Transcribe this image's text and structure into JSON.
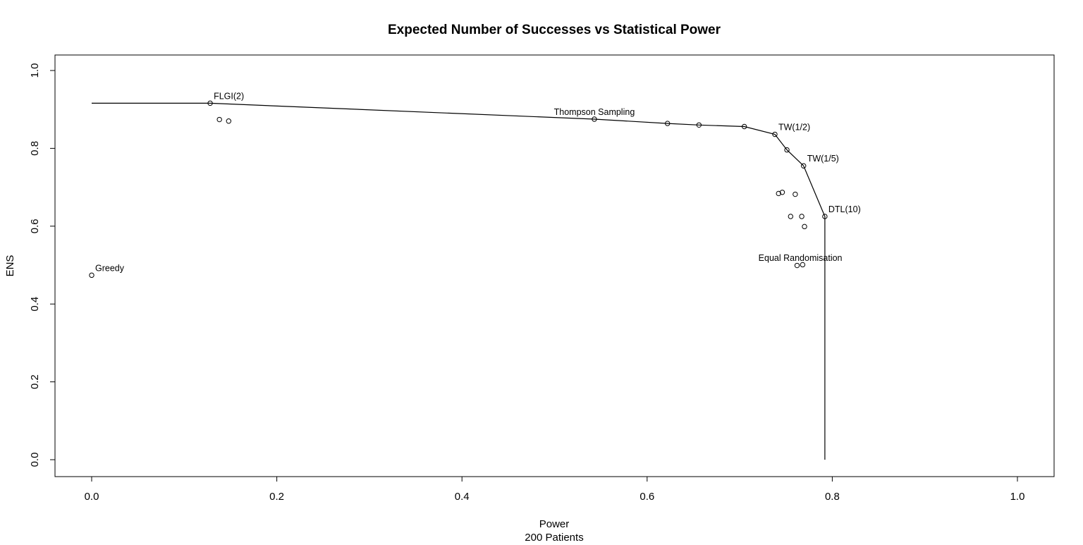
{
  "chart_data": {
    "type": "scatter",
    "title": "Expected Number of Successes vs Statistical Power",
    "xlabel": "Power",
    "xlabel_sub": "200 Patients",
    "ylabel": "ENS",
    "xlim": [
      0.0,
      1.0
    ],
    "ylim": [
      0.0,
      1.0
    ],
    "xticks": [
      "0.0",
      "0.2",
      "0.4",
      "0.6",
      "0.8",
      "1.0"
    ],
    "yticks": [
      "0.0",
      "0.2",
      "0.4",
      "0.6",
      "0.8",
      "1.0"
    ],
    "grid": false,
    "points": [
      {
        "x": 0.0,
        "y": 0.474
      },
      {
        "x": 0.128,
        "y": 0.916
      },
      {
        "x": 0.138,
        "y": 0.874
      },
      {
        "x": 0.148,
        "y": 0.87
      },
      {
        "x": 0.543,
        "y": 0.875
      },
      {
        "x": 0.622,
        "y": 0.864
      },
      {
        "x": 0.656,
        "y": 0.86
      },
      {
        "x": 0.705,
        "y": 0.856
      },
      {
        "x": 0.738,
        "y": 0.836
      },
      {
        "x": 0.751,
        "y": 0.796
      },
      {
        "x": 0.769,
        "y": 0.755
      },
      {
        "x": 0.792,
        "y": 0.625
      },
      {
        "x": 0.742,
        "y": 0.684
      },
      {
        "x": 0.746,
        "y": 0.687
      },
      {
        "x": 0.76,
        "y": 0.682
      },
      {
        "x": 0.755,
        "y": 0.625
      },
      {
        "x": 0.767,
        "y": 0.625
      },
      {
        "x": 0.77,
        "y": 0.599
      },
      {
        "x": 0.762,
        "y": 0.499
      },
      {
        "x": 0.768,
        "y": 0.501
      }
    ],
    "frontier": {
      "x": [
        0.0,
        0.128,
        0.543,
        0.622,
        0.656,
        0.705,
        0.738,
        0.751,
        0.769,
        0.792,
        0.792
      ],
      "y": [
        0.916,
        0.916,
        0.875,
        0.864,
        0.86,
        0.856,
        0.836,
        0.796,
        0.755,
        0.625,
        0.0
      ]
    },
    "annotations": [
      {
        "text": "Greedy",
        "x": 0.0,
        "y": 0.474,
        "anchor": "start"
      },
      {
        "text": "FLGI(2)",
        "x": 0.128,
        "y": 0.916,
        "anchor": "start"
      },
      {
        "text": "Thompson Sampling",
        "x": 0.543,
        "y": 0.875,
        "anchor": "middle"
      },
      {
        "text": "TW(1/2)",
        "x": 0.738,
        "y": 0.836,
        "anchor": "start"
      },
      {
        "text": "TW(1/5)",
        "x": 0.769,
        "y": 0.755,
        "anchor": "start"
      },
      {
        "text": "DTL(10)",
        "x": 0.792,
        "y": 0.625,
        "anchor": "start"
      },
      {
        "text": "Equal Randomisation",
        "x": 0.7655,
        "y": 0.5,
        "anchor": "middle"
      }
    ]
  }
}
